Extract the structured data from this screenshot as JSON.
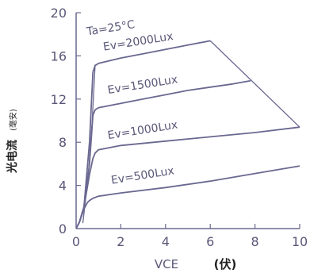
{
  "chart_data": {
    "type": "line",
    "xlabel": "VCE",
    "xunit": "(伏)",
    "ylabel": "光电流",
    "yunit": "(毫安)",
    "xlim": [
      0,
      10
    ],
    "ylim": [
      0,
      20
    ],
    "xticks": [
      "0",
      "2",
      "4",
      "6",
      "8",
      "10"
    ],
    "yticks": [
      "0",
      "4",
      "8",
      "12",
      "16",
      "20"
    ],
    "grid": false,
    "colors": {
      "curve": "#6a6890",
      "axis": "#6a6890"
    },
    "annotation": "Ta=25°C",
    "series": [
      {
        "name": "Ev=2000Lux",
        "x": [
          0,
          0.15,
          0.35,
          0.6,
          0.75,
          0.85,
          1.0,
          2.0,
          3.0,
          4.0,
          5.0,
          6.0
        ],
        "y": [
          0,
          0.6,
          2.0,
          8.0,
          14.5,
          15.1,
          15.3,
          15.8,
          16.2,
          16.6,
          17.0,
          17.4
        ]
      },
      {
        "name": "Ev=1500Lux",
        "x": [
          0,
          0.15,
          0.35,
          0.6,
          0.75,
          0.85,
          1.0,
          2.0,
          3.0,
          4.0,
          5.0,
          6.0,
          7.0,
          7.8
        ],
        "y": [
          0,
          0.6,
          2.0,
          6.0,
          10.5,
          11.0,
          11.2,
          11.6,
          12.0,
          12.4,
          12.8,
          13.1,
          13.4,
          13.7
        ]
      },
      {
        "name": "Ev=1000Lux",
        "x": [
          0,
          0.15,
          0.35,
          0.6,
          0.75,
          0.85,
          1.0,
          2.0,
          4.0,
          6.0,
          8.0,
          10.0
        ],
        "y": [
          0,
          0.6,
          2.0,
          5.0,
          6.5,
          7.0,
          7.3,
          7.7,
          8.1,
          8.5,
          8.9,
          9.4
        ]
      },
      {
        "name": "Ev=500Lux",
        "x": [
          0,
          0.15,
          0.35,
          0.5,
          0.6,
          0.75,
          1.0,
          2.0,
          4.0,
          6.0,
          8.0,
          10.0
        ],
        "y": [
          0,
          0.6,
          1.8,
          2.4,
          2.6,
          2.8,
          3.0,
          3.3,
          3.8,
          4.4,
          5.1,
          5.8
        ]
      }
    ],
    "boundary": {
      "x": [
        6.0,
        10.0
      ],
      "y": [
        17.4,
        9.4
      ]
    },
    "vertical_ramp": {
      "x": [
        0.3,
        0.55,
        0.72,
        0.85
      ],
      "y": [
        0.5,
        5.0,
        10.0,
        15.2
      ]
    }
  }
}
